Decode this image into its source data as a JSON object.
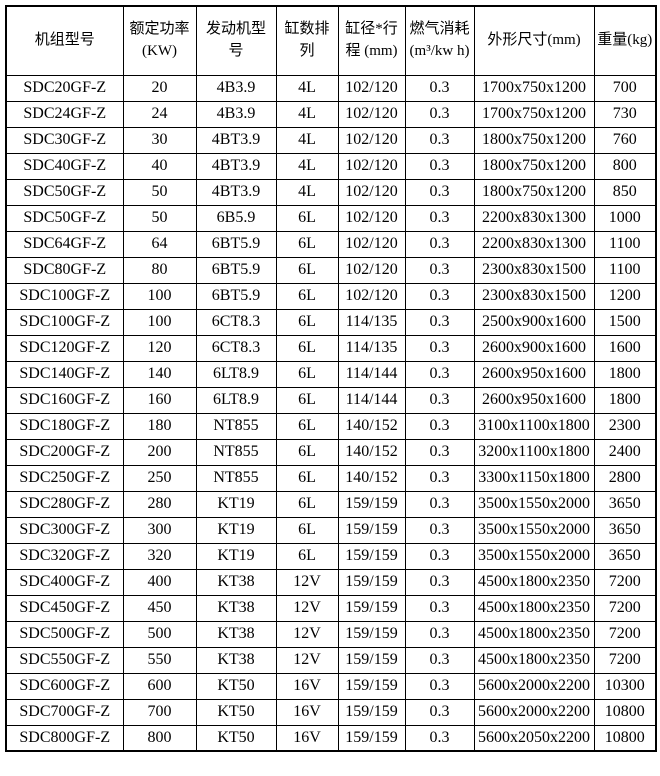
{
  "colors": {
    "background": "#ffffff",
    "border": "#000000",
    "text": "#000000"
  },
  "table": {
    "headers": [
      "机组型号",
      "额定功率\n(KW)",
      "发动机型\n号",
      "缸数排\n列",
      "缸径*行\n程 (mm)",
      "燃气消耗\n(m³/kw h)",
      "外形尺寸(mm)",
      "重量(kg)"
    ],
    "rows": [
      [
        "SDC20GF-Z",
        "20",
        "4B3.9",
        "4L",
        "102/120",
        "0.3",
        "1700x750x1200",
        "700"
      ],
      [
        "SDC24GF-Z",
        "24",
        "4B3.9",
        "4L",
        "102/120",
        "0.3",
        "1700x750x1200",
        "730"
      ],
      [
        "SDC30GF-Z",
        "30",
        "4BT3.9",
        "4L",
        "102/120",
        "0.3",
        "1800x750x1200",
        "760"
      ],
      [
        "SDC40GF-Z",
        "40",
        "4BT3.9",
        "4L",
        "102/120",
        "0.3",
        "1800x750x1200",
        "800"
      ],
      [
        "SDC50GF-Z",
        "50",
        "4BT3.9",
        "4L",
        "102/120",
        "0.3",
        "1800x750x1200",
        "850"
      ],
      [
        "SDC50GF-Z",
        "50",
        "6B5.9",
        "6L",
        "102/120",
        "0.3",
        "2200x830x1300",
        "1000"
      ],
      [
        "SDC64GF-Z",
        "64",
        "6BT5.9",
        "6L",
        "102/120",
        "0.3",
        "2200x830x1300",
        "1100"
      ],
      [
        "SDC80GF-Z",
        "80",
        "6BT5.9",
        "6L",
        "102/120",
        "0.3",
        "2300x830x1500",
        "1100"
      ],
      [
        "SDC100GF-Z",
        "100",
        "6BT5.9",
        "6L",
        "102/120",
        "0.3",
        "2300x830x1500",
        "1200"
      ],
      [
        "SDC100GF-Z",
        "100",
        "6CT8.3",
        "6L",
        "114/135",
        "0.3",
        "2500x900x1600",
        "1500"
      ],
      [
        "SDC120GF-Z",
        "120",
        "6CT8.3",
        "6L",
        "114/135",
        "0.3",
        "2600x900x1600",
        "1600"
      ],
      [
        "SDC140GF-Z",
        "140",
        "6LT8.9",
        "6L",
        "114/144",
        "0.3",
        "2600x950x1600",
        "1800"
      ],
      [
        "SDC160GF-Z",
        "160",
        "6LT8.9",
        "6L",
        "114/144",
        "0.3",
        "2600x950x1600",
        "1800"
      ],
      [
        "SDC180GF-Z",
        "180",
        "NT855",
        "6L",
        "140/152",
        "0.3",
        "3100x1100x1800",
        "2300"
      ],
      [
        "SDC200GF-Z",
        "200",
        "NT855",
        "6L",
        "140/152",
        "0.3",
        "3200x1100x1800",
        "2400"
      ],
      [
        "SDC250GF-Z",
        "250",
        "NT855",
        "6L",
        "140/152",
        "0.3",
        "3300x1150x1800",
        "2800"
      ],
      [
        "SDC280GF-Z",
        "280",
        "KT19",
        "6L",
        "159/159",
        "0.3",
        "3500x1550x2000",
        "3650"
      ],
      [
        "SDC300GF-Z",
        "300",
        "KT19",
        "6L",
        "159/159",
        "0.3",
        "3500x1550x2000",
        "3650"
      ],
      [
        "SDC320GF-Z",
        "320",
        "KT19",
        "6L",
        "159/159",
        "0.3",
        "3500x1550x2000",
        "3650"
      ],
      [
        "SDC400GF-Z",
        "400",
        "KT38",
        "12V",
        "159/159",
        "0.3",
        "4500x1800x2350",
        "7200"
      ],
      [
        "SDC450GF-Z",
        "450",
        "KT38",
        "12V",
        "159/159",
        "0.3",
        "4500x1800x2350",
        "7200"
      ],
      [
        "SDC500GF-Z",
        "500",
        "KT38",
        "12V",
        "159/159",
        "0.3",
        "4500x1800x2350",
        "7200"
      ],
      [
        "SDC550GF-Z",
        "550",
        "KT38",
        "12V",
        "159/159",
        "0.3",
        "4500x1800x2350",
        "7200"
      ],
      [
        "SDC600GF-Z",
        "600",
        "KT50",
        "16V",
        "159/159",
        "0.3",
        "5600x2000x2200",
        "10300"
      ],
      [
        "SDC700GF-Z",
        "700",
        "KT50",
        "16V",
        "159/159",
        "0.3",
        "5600x2000x2200",
        "10800"
      ],
      [
        "SDC800GF-Z",
        "800",
        "KT50",
        "16V",
        "159/159",
        "0.3",
        "5600x2050x2200",
        "10800"
      ]
    ]
  }
}
